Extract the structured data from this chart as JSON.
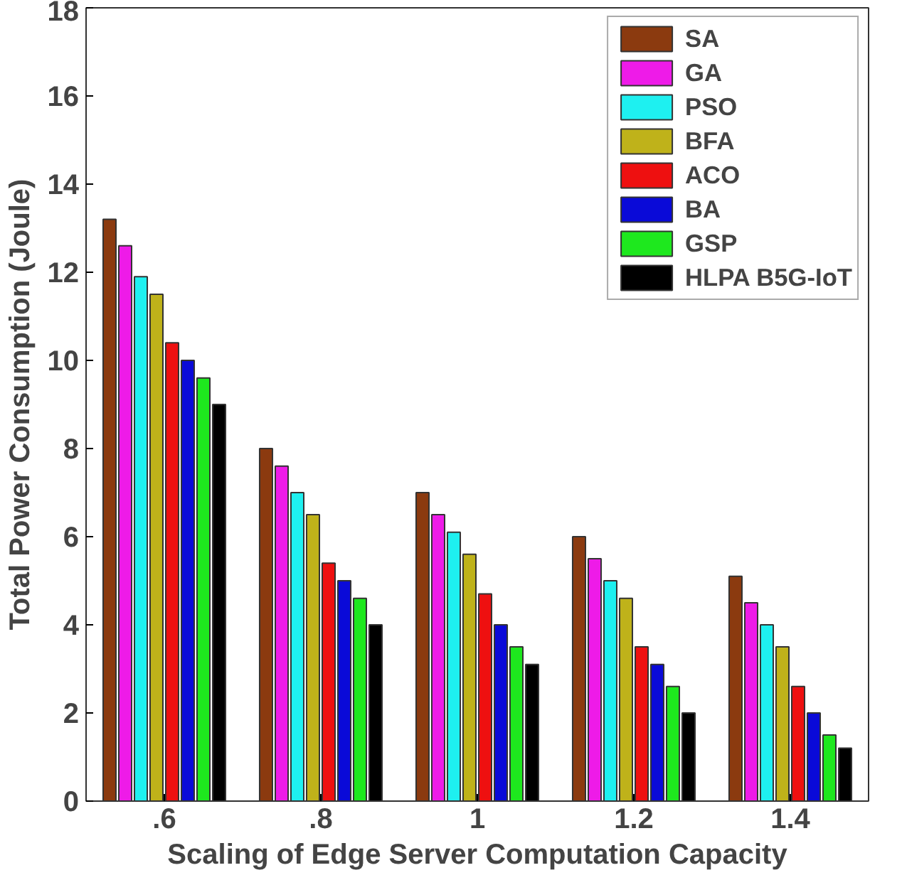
{
  "chart_data": {
    "type": "bar",
    "xlabel": "Scaling of Edge Server Computation Capacity",
    "ylabel": "Total Power Consumption (Joule)",
    "categories": [
      ".6",
      ".8",
      "1",
      "1.2",
      "1.4"
    ],
    "series": [
      {
        "name": "SA",
        "color": "#8b3a0f",
        "values": [
          13.2,
          8.0,
          7.0,
          6.0,
          5.1
        ]
      },
      {
        "name": "GA",
        "color": "#ee1be8",
        "values": [
          12.6,
          7.6,
          6.5,
          5.5,
          4.5
        ]
      },
      {
        "name": "PSO",
        "color": "#1ef0f0",
        "values": [
          11.9,
          7.0,
          6.1,
          5.0,
          4.0
        ]
      },
      {
        "name": "BFA",
        "color": "#bfb21a",
        "values": [
          11.5,
          6.5,
          5.6,
          4.6,
          3.5
        ]
      },
      {
        "name": "ACO",
        "color": "#ee1010",
        "values": [
          10.4,
          5.4,
          4.7,
          3.5,
          2.6
        ]
      },
      {
        "name": "BA",
        "color": "#0a0ad8",
        "values": [
          10.0,
          5.0,
          4.0,
          3.1,
          2.0
        ]
      },
      {
        "name": "GSP",
        "color": "#1ee81e",
        "values": [
          9.6,
          4.6,
          3.5,
          2.6,
          1.5
        ]
      },
      {
        "name": "HLPA B5G-IoT",
        "color": "#000000",
        "values": [
          9.0,
          4.0,
          3.1,
          2.0,
          1.2
        ]
      }
    ],
    "ylim": [
      0,
      18
    ],
    "yticks": [
      0,
      2,
      4,
      6,
      8,
      10,
      12,
      14,
      16,
      18
    ],
    "grid": false,
    "legend": "top right"
  }
}
